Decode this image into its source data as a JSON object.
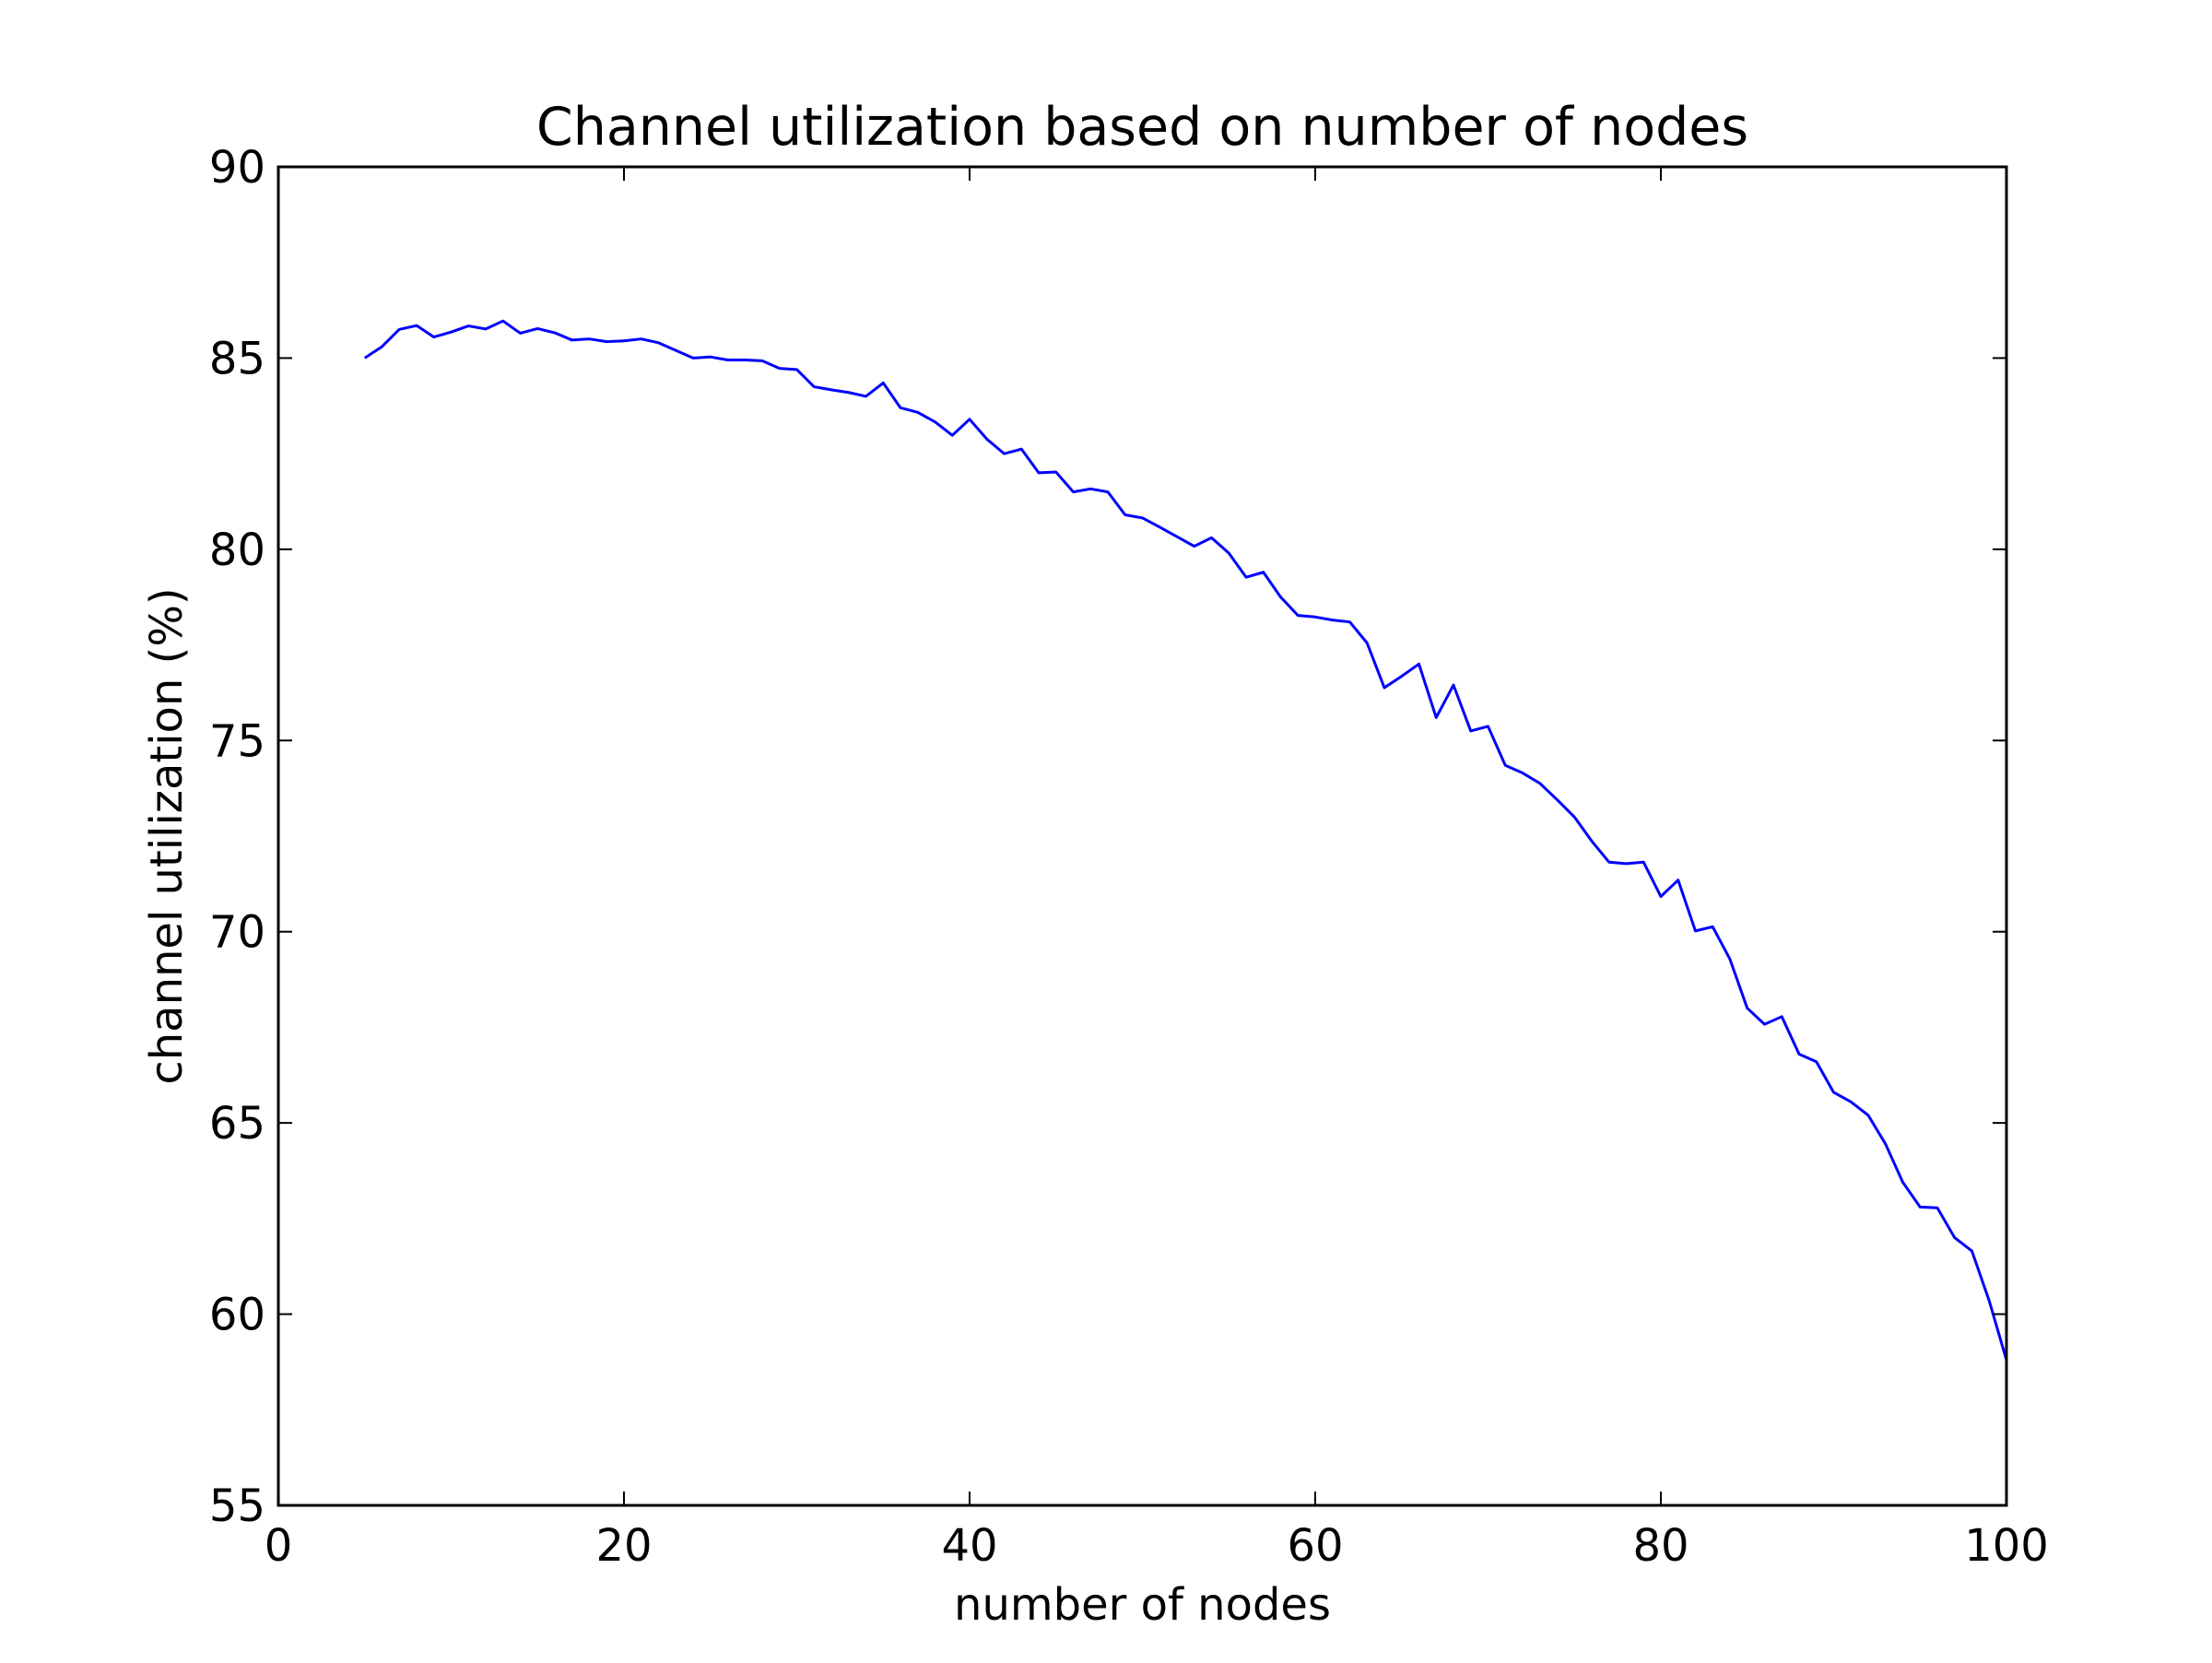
{
  "chart_data": {
    "type": "line",
    "title": "Channel utilization based on number of nodes",
    "xlabel": "number of nodes",
    "ylabel": "channel utilization (%)",
    "xlim": [
      0,
      100
    ],
    "ylim": [
      55,
      90
    ],
    "xticks": [
      0,
      20,
      40,
      60,
      80,
      100
    ],
    "yticks": [
      55,
      60,
      65,
      70,
      75,
      80,
      85,
      90
    ],
    "xtick_labels": [
      "0",
      "20",
      "40",
      "60",
      "80",
      "100"
    ],
    "ytick_labels": [
      "55",
      "60",
      "65",
      "70",
      "75",
      "80",
      "85",
      "90"
    ],
    "grid": false,
    "legend": "none",
    "colors": {
      "series": "#0000ff",
      "axes": "#000000",
      "background": "#ffffff"
    },
    "x": [
      5,
      6,
      7,
      8,
      9,
      10,
      11,
      12,
      13,
      14,
      15,
      16,
      17,
      18,
      19,
      20,
      21,
      22,
      23,
      24,
      25,
      26,
      27,
      28,
      29,
      30,
      31,
      32,
      33,
      34,
      35,
      36,
      37,
      38,
      39,
      40,
      41,
      42,
      43,
      44,
      45,
      46,
      47,
      48,
      49,
      50,
      51,
      52,
      53,
      54,
      55,
      56,
      57,
      58,
      59,
      60,
      61,
      62,
      63,
      64,
      65,
      66,
      67,
      68,
      69,
      70,
      71,
      72,
      73,
      74,
      75,
      76,
      77,
      78,
      79,
      80,
      81,
      82,
      83,
      84,
      85,
      86,
      87,
      88,
      89,
      90,
      91,
      92,
      93,
      94,
      95,
      96,
      97,
      98,
      99,
      100
    ],
    "series": [
      {
        "values": [
          85.0,
          85.3,
          85.75,
          85.85,
          85.55,
          85.68,
          85.84,
          85.76,
          85.97,
          85.65,
          85.77,
          85.66,
          85.47,
          85.5,
          85.43,
          85.45,
          85.5,
          85.4,
          85.2,
          85.0,
          85.03,
          84.95,
          84.95,
          84.93,
          84.73,
          84.7,
          84.25,
          84.17,
          84.1,
          84.0,
          84.35,
          83.7,
          83.58,
          83.33,
          82.98,
          83.4,
          82.88,
          82.5,
          82.62,
          82.0,
          82.02,
          81.5,
          81.58,
          81.5,
          80.9,
          80.82,
          80.58,
          80.33,
          80.08,
          80.3,
          79.9,
          79.27,
          79.4,
          78.75,
          78.27,
          78.23,
          78.15,
          78.1,
          77.55,
          76.38,
          76.68,
          77.0,
          75.6,
          76.45,
          75.25,
          75.37,
          74.35,
          74.15,
          73.88,
          73.45,
          73.0,
          72.37,
          71.82,
          71.78,
          71.82,
          70.92,
          71.35,
          70.02,
          70.13,
          69.28,
          68.0,
          67.58,
          67.78,
          66.8,
          66.6,
          65.8,
          65.55,
          65.2,
          64.45,
          63.45,
          62.8,
          62.78,
          62.0,
          61.65,
          60.35,
          58.8
        ]
      }
    ]
  }
}
